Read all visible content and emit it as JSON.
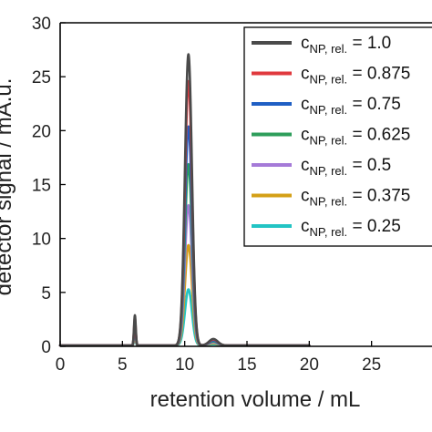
{
  "chart_data": {
    "type": "line",
    "xlabel": "retention volume / mL",
    "ylabel": "detector signal / mA.u.",
    "xlim": [
      0,
      30
    ],
    "ylim": [
      0,
      30
    ],
    "xticks": [
      0,
      5,
      10,
      15,
      20,
      25
    ],
    "yticks": [
      0,
      5,
      10,
      15,
      20,
      25,
      30
    ],
    "grid": false,
    "legend_position": "top-right",
    "legend_prefix": "c",
    "legend_sub": "NP, rel.",
    "series": [
      {
        "name": "1.0",
        "color": "#4a4a4a",
        "main_peak": 27.0,
        "small_peak": 2.8
      },
      {
        "name": "0.875",
        "color": "#e0393e",
        "main_peak": 24.5,
        "small_peak": 2.5
      },
      {
        "name": "0.75",
        "color": "#1f5fc4",
        "main_peak": 20.3,
        "small_peak": 2.1
      },
      {
        "name": "0.625",
        "color": "#2e9e5b",
        "main_peak": 16.8,
        "small_peak": 1.8
      },
      {
        "name": "0.5",
        "color": "#a57ad8",
        "main_peak": 13.0,
        "small_peak": 1.4
      },
      {
        "name": "0.375",
        "color": "#d4a017",
        "main_peak": 9.3,
        "small_peak": 1.0
      },
      {
        "name": "0.25",
        "color": "#22c4c4",
        "main_peak": 5.2,
        "small_peak": 0.7
      }
    ],
    "main_peak_x": 10.3,
    "small_peak_x": 6.0,
    "shoulder_x": 12.3,
    "shoulder_height": 0.6,
    "x_end": 20.0
  }
}
